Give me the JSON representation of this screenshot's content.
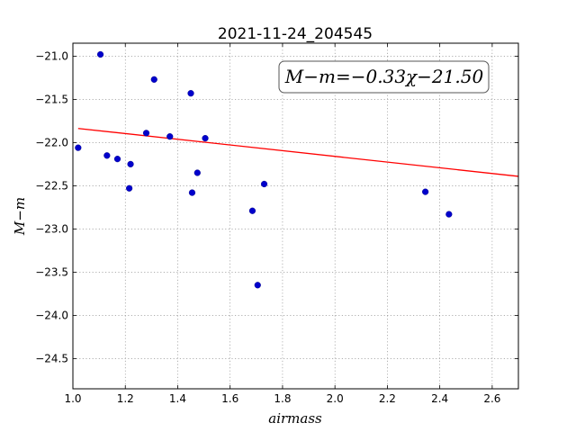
{
  "chart_data": {
    "type": "scatter",
    "title": "2021-11-24_204545",
    "xlabel": "airmass",
    "ylabel": "M−m",
    "xlim": [
      1.0,
      2.7
    ],
    "ylim": [
      -24.85,
      -20.85
    ],
    "x_ticks": [
      1.0,
      1.2,
      1.4,
      1.6,
      1.8,
      2.0,
      2.2,
      2.4,
      2.6
    ],
    "x_tick_labels": [
      "1.0",
      "1.2",
      "1.4",
      "1.6",
      "1.8",
      "2.0",
      "2.2",
      "2.4",
      "2.6"
    ],
    "y_ticks": [
      -21.0,
      -21.5,
      -22.0,
      -22.5,
      -23.0,
      -23.5,
      -24.0,
      -24.5
    ],
    "y_tick_labels": [
      "−21.0",
      "−21.5",
      "−22.0",
      "−22.5",
      "−23.0",
      "−23.5",
      "−24.0",
      "−24.5"
    ],
    "grid": true,
    "series": [
      {
        "kind": "points",
        "color": "#0000cc",
        "points": [
          {
            "x": 1.02,
            "y": -22.06
          },
          {
            "x": 1.105,
            "y": -20.98
          },
          {
            "x": 1.13,
            "y": -22.15
          },
          {
            "x": 1.17,
            "y": -22.19
          },
          {
            "x": 1.215,
            "y": -22.53
          },
          {
            "x": 1.22,
            "y": -22.25
          },
          {
            "x": 1.28,
            "y": -21.89
          },
          {
            "x": 1.31,
            "y": -21.27
          },
          {
            "x": 1.37,
            "y": -21.93
          },
          {
            "x": 1.45,
            "y": -21.43
          },
          {
            "x": 1.455,
            "y": -22.58
          },
          {
            "x": 1.475,
            "y": -22.35
          },
          {
            "x": 1.505,
            "y": -21.95
          },
          {
            "x": 1.685,
            "y": -22.79
          },
          {
            "x": 1.705,
            "y": -23.65
          },
          {
            "x": 1.73,
            "y": -22.48
          },
          {
            "x": 2.345,
            "y": -22.57
          },
          {
            "x": 2.435,
            "y": -22.83
          }
        ]
      },
      {
        "kind": "fit-line",
        "color": "#ff0000",
        "slope": -0.33,
        "intercept": -21.5,
        "x_range": [
          1.02,
          2.7
        ]
      }
    ],
    "annotation": {
      "text": "M−m=−0.33χ−21.50",
      "position": "top-right"
    }
  }
}
